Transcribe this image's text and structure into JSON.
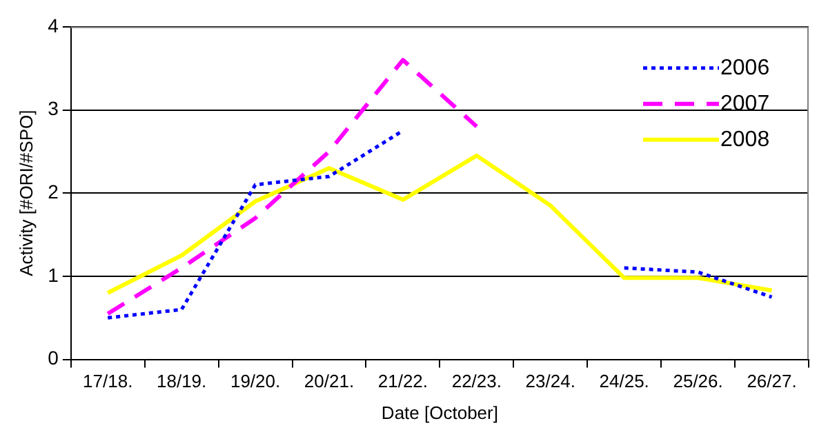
{
  "chart_data": {
    "type": "line",
    "xlabel": "Date [October]",
    "ylabel": "Activity [#ORI/#SPO]",
    "categories": [
      "17/18.",
      "18/19.",
      "19/20.",
      "20/21.",
      "21/22.",
      "22/23.",
      "23/24.",
      "24/25.",
      "25/26.",
      "26/27."
    ],
    "series": [
      {
        "name": "2006",
        "color": "#0000ff",
        "line_style": "dotted",
        "values": [
          0.5,
          0.6,
          2.1,
          2.2,
          2.75,
          null,
          null,
          1.1,
          1.05,
          0.75
        ]
      },
      {
        "name": "2007",
        "color": "#ff00ff",
        "line_style": "dashed",
        "values": [
          0.55,
          1.1,
          1.7,
          2.5,
          3.6,
          2.8,
          null,
          null,
          null,
          null
        ]
      },
      {
        "name": "2008",
        "color": "#ffff00",
        "line_style": "solid",
        "values": [
          0.8,
          1.25,
          1.9,
          2.3,
          1.92,
          2.45,
          1.85,
          0.98,
          0.98,
          0.83
        ]
      }
    ],
    "ylim": [
      0,
      4
    ],
    "yticks": [
      0,
      1,
      2,
      3,
      4
    ],
    "grid": "y",
    "legend": "top right",
    "marker": "none"
  }
}
